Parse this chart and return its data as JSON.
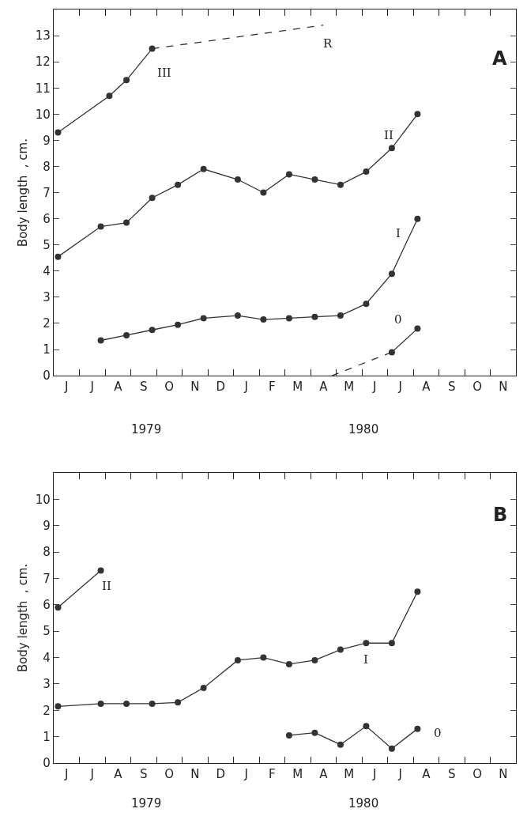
{
  "chart_data": [
    {
      "type": "line",
      "ylabel": "Body length  , cm.",
      "ylim": [
        0,
        14
      ],
      "yticks": [
        0,
        1,
        2,
        3,
        4,
        5,
        6,
        7,
        8,
        9,
        10,
        11,
        12,
        13
      ],
      "categories": [
        null,
        "J",
        null,
        null,
        "J",
        null,
        null,
        "A",
        null,
        null,
        "S",
        null,
        null,
        "O",
        null,
        null,
        "N",
        null,
        null,
        "D",
        null,
        null,
        "J",
        null,
        null,
        "F",
        null,
        null,
        "M",
        null,
        null,
        "A",
        null,
        null,
        "M",
        null,
        null,
        "J",
        null,
        null,
        "J",
        null,
        null,
        "A",
        null,
        null,
        "S",
        null,
        null,
        "O",
        null,
        null,
        "N",
        null
      ],
      "grid": false,
      "marker": "circle",
      "line_style": "solid",
      "series": [
        {
          "color": "#333333",
          "values": [
            9.3,
            null,
            null,
            null,
            null,
            null,
            10.7,
            null,
            11.3,
            null,
            null,
            12.5,
            null,
            null,
            null,
            null,
            null,
            null,
            null,
            null,
            null,
            null,
            null,
            null,
            null,
            null,
            null,
            null,
            null,
            null,
            null,
            null,
            null,
            null,
            null,
            null,
            null,
            null,
            null,
            null,
            null,
            null,
            null,
            null,
            null,
            null,
            null,
            null,
            null,
            null,
            null,
            null,
            null,
            null
          ]
        },
        {
          "color": "#333333",
          "line_style": "dashed",
          "marker": "none",
          "values": [
            null,
            null,
            null,
            null,
            null,
            null,
            null,
            null,
            null,
            null,
            null,
            12.5,
            null,
            null,
            null,
            null,
            null,
            null,
            null,
            null,
            null,
            null,
            null,
            null,
            null,
            null,
            null,
            null,
            null,
            null,
            null,
            13.4,
            null,
            null,
            null,
            null,
            null,
            null,
            null,
            null,
            null,
            null,
            null,
            null,
            null,
            null,
            null,
            null,
            null,
            null,
            null,
            null,
            null,
            null
          ]
        },
        {
          "color": "#333333",
          "values": [
            4.55,
            null,
            null,
            null,
            null,
            5.7,
            null,
            null,
            5.85,
            null,
            null,
            6.8,
            null,
            null,
            7.3,
            null,
            null,
            7.9,
            null,
            null,
            null,
            7.5,
            null,
            null,
            7.0,
            null,
            null,
            7.7,
            null,
            null,
            7.5,
            null,
            null,
            7.3,
            null,
            null,
            7.8,
            null,
            null,
            8.7,
            null,
            null,
            10.0,
            null,
            null,
            null,
            null,
            null,
            null,
            null,
            null,
            null,
            null,
            null
          ]
        },
        {
          "color": "#333333",
          "values": [
            null,
            null,
            null,
            null,
            null,
            1.35,
            null,
            null,
            1.55,
            null,
            null,
            1.75,
            null,
            null,
            1.95,
            null,
            null,
            2.2,
            null,
            null,
            null,
            2.3,
            null,
            null,
            2.15,
            null,
            null,
            2.2,
            null,
            null,
            2.25,
            null,
            null,
            2.3,
            null,
            null,
            2.75,
            null,
            null,
            3.9,
            null,
            null,
            6.0,
            null,
            null,
            null,
            null,
            null,
            null,
            null,
            null,
            null,
            null,
            null
          ]
        },
        {
          "color": "#333333",
          "values": [
            null,
            null,
            null,
            null,
            null,
            null,
            null,
            null,
            null,
            null,
            null,
            null,
            null,
            null,
            null,
            null,
            null,
            null,
            null,
            null,
            null,
            null,
            null,
            null,
            null,
            null,
            null,
            null,
            null,
            null,
            null,
            null,
            null,
            null,
            null,
            null,
            null,
            null,
            null,
            0.9,
            null,
            null,
            1.8,
            null,
            null,
            null,
            null,
            null,
            null,
            null,
            null,
            null,
            null,
            null
          ]
        },
        {
          "color": "#333333",
          "line_style": "dashed",
          "marker": "none",
          "values": [
            null,
            null,
            null,
            null,
            null,
            null,
            null,
            null,
            null,
            null,
            null,
            null,
            null,
            null,
            null,
            null,
            null,
            null,
            null,
            null,
            null,
            null,
            null,
            null,
            null,
            null,
            null,
            null,
            null,
            null,
            null,
            null,
            0,
            null,
            null,
            null,
            null,
            null,
            null,
            0.9,
            null,
            null,
            null,
            null,
            null,
            null,
            null,
            null,
            null,
            null,
            null,
            null,
            null,
            null
          ]
        }
      ],
      "annotations": [
        "A",
        "1979",
        "1980",
        "III",
        "R",
        "II",
        "I",
        "0"
      ]
    },
    {
      "type": "line",
      "ylabel": "Body length  , cm.",
      "ylim": [
        0,
        11
      ],
      "yticks": [
        0,
        1,
        2,
        3,
        4,
        5,
        6,
        7,
        8,
        9,
        10
      ],
      "categories": [
        null,
        "J",
        null,
        null,
        "J",
        null,
        null,
        "A",
        null,
        null,
        "S",
        null,
        null,
        "O",
        null,
        null,
        "N",
        null,
        null,
        "D",
        null,
        null,
        "J",
        null,
        null,
        "F",
        null,
        null,
        "M",
        null,
        null,
        "A",
        null,
        null,
        "M",
        null,
        null,
        "J",
        null,
        null,
        "J",
        null,
        null,
        "A",
        null,
        null,
        "S",
        null,
        null,
        "O",
        null,
        null,
        "N",
        null
      ],
      "grid": false,
      "marker": "circle",
      "line_style": "solid",
      "series": [
        {
          "color": "#333333",
          "values": [
            5.9,
            null,
            null,
            null,
            null,
            7.3,
            null,
            null,
            null,
            null,
            null,
            null,
            null,
            null,
            null,
            null,
            null,
            null,
            null,
            null,
            null,
            null,
            null,
            null,
            null,
            null,
            null,
            null,
            null,
            null,
            null,
            null,
            null,
            null,
            null,
            null,
            null,
            null,
            null,
            null,
            null,
            null,
            null,
            null,
            null,
            null,
            null,
            null,
            null,
            null,
            null,
            null,
            null,
            null
          ]
        },
        {
          "color": "#333333",
          "values": [
            2.15,
            null,
            null,
            null,
            null,
            2.25,
            null,
            null,
            2.25,
            null,
            null,
            2.25,
            null,
            null,
            2.3,
            null,
            null,
            2.85,
            null,
            null,
            null,
            3.9,
            null,
            null,
            4.0,
            null,
            null,
            3.75,
            null,
            null,
            3.9,
            null,
            null,
            4.3,
            null,
            null,
            4.55,
            null,
            null,
            4.55,
            null,
            null,
            6.5,
            null,
            null,
            null,
            null,
            null,
            null,
            null,
            null,
            null,
            null,
            null
          ]
        },
        {
          "color": "#333333",
          "values": [
            null,
            null,
            null,
            null,
            null,
            null,
            null,
            null,
            null,
            null,
            null,
            null,
            null,
            null,
            null,
            null,
            null,
            null,
            null,
            null,
            null,
            null,
            null,
            null,
            null,
            null,
            null,
            1.05,
            null,
            null,
            1.15,
            null,
            null,
            0.7,
            null,
            null,
            1.4,
            null,
            null,
            0.55,
            null,
            null,
            1.3,
            null,
            null,
            null,
            null,
            null,
            null,
            null,
            null,
            null,
            null,
            null
          ]
        }
      ],
      "annotations": [
        "B",
        "1979",
        "1980",
        "II",
        "I",
        "0"
      ]
    }
  ]
}
